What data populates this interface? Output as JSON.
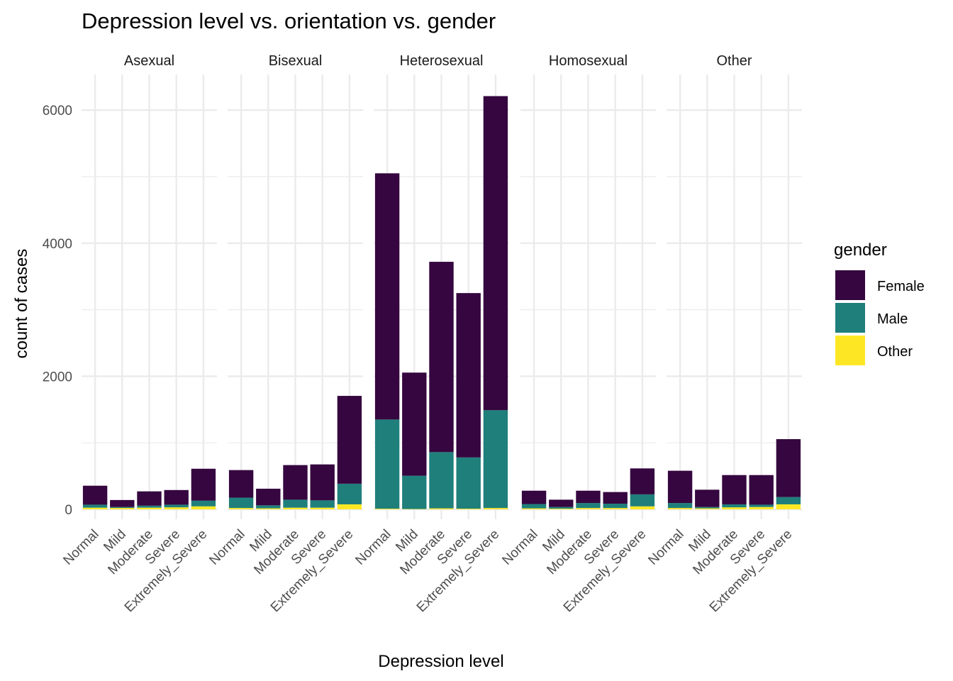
{
  "chart_data": {
    "type": "bar",
    "stacked": true,
    "title": "Depression level vs. orientation vs. gender",
    "xlabel": "Depression level",
    "ylabel": "count of cases",
    "ylim": [
      0,
      6500
    ],
    "y_ticks": [
      0,
      2000,
      4000,
      6000
    ],
    "grid": true,
    "legend": {
      "title": "gender",
      "position": "right"
    },
    "categories": [
      "Normal",
      "Mild",
      "Moderate",
      "Severe",
      "Extremely_Severe"
    ],
    "series_order": [
      "Other",
      "Male",
      "Female"
    ],
    "series_legend_order": [
      "Female",
      "Male",
      "Other"
    ],
    "colors": {
      "Female": "#35063f",
      "Male": "#1f7f7b",
      "Other": "#fde725"
    },
    "facets": [
      {
        "name": "Asexual",
        "values": {
          "Other": [
            25,
            20,
            25,
            30,
            45
          ],
          "Male": [
            45,
            15,
            30,
            40,
            85
          ],
          "Female": [
            285,
            105,
            215,
            220,
            480
          ]
        }
      },
      {
        "name": "Bisexual",
        "values": {
          "Other": [
            20,
            15,
            25,
            25,
            75
          ],
          "Male": [
            155,
            45,
            120,
            110,
            310
          ],
          "Female": [
            415,
            250,
            520,
            540,
            1320
          ]
        }
      },
      {
        "name": "Heterosexual",
        "values": {
          "Other": [
            10,
            5,
            15,
            10,
            20
          ],
          "Male": [
            1340,
            500,
            845,
            770,
            1470
          ],
          "Female": [
            3700,
            1550,
            2860,
            2470,
            4720
          ]
        }
      },
      {
        "name": "Homosexual",
        "values": {
          "Other": [
            15,
            10,
            20,
            20,
            45
          ],
          "Male": [
            65,
            25,
            75,
            65,
            180
          ],
          "Female": [
            200,
            110,
            185,
            175,
            390
          ]
        }
      },
      {
        "name": "Other",
        "values": {
          "Other": [
            20,
            15,
            30,
            35,
            75
          ],
          "Male": [
            75,
            20,
            45,
            35,
            110
          ],
          "Female": [
            485,
            260,
            440,
            445,
            870
          ]
        }
      }
    ]
  }
}
